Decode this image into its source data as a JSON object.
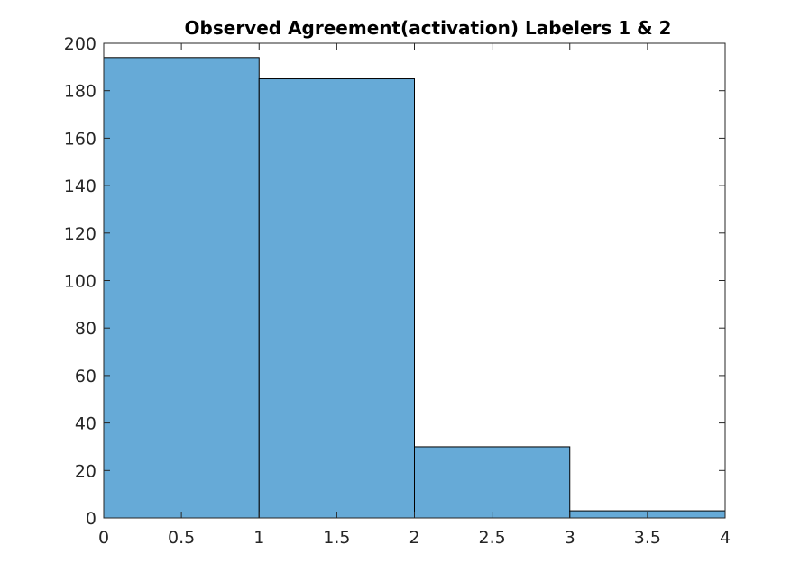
{
  "chart_data": {
    "type": "bar",
    "title": "Observed Agreement(activation) Labelers 1 & 2",
    "xlabel": "",
    "ylabel": "",
    "bins": [
      {
        "x0": 0,
        "x1": 1,
        "value": 194
      },
      {
        "x0": 1,
        "x1": 2,
        "value": 185
      },
      {
        "x0": 2,
        "x1": 3,
        "value": 30
      },
      {
        "x0": 3,
        "x1": 4,
        "value": 3
      }
    ],
    "xlim": [
      0,
      4
    ],
    "ylim": [
      0,
      200
    ],
    "xticks": [
      0,
      0.5,
      1,
      1.5,
      2,
      2.5,
      3,
      3.5,
      4
    ],
    "yticks": [
      0,
      20,
      40,
      60,
      80,
      100,
      120,
      140,
      160,
      180,
      200
    ],
    "grid": false,
    "legend": "none",
    "bar_color": "#66aad7",
    "edge_color": "#000000"
  }
}
